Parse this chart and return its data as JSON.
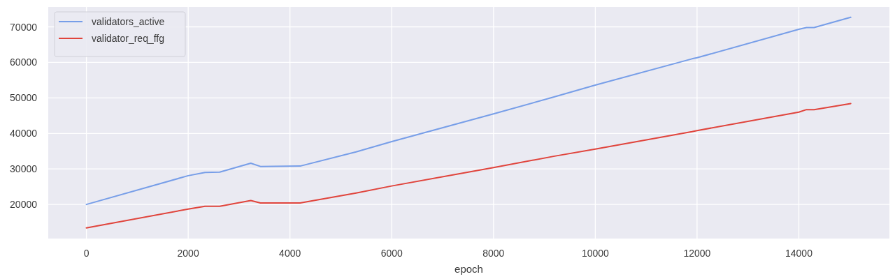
{
  "chart_data": {
    "type": "line",
    "xlabel": "epoch",
    "x": [
      0,
      2000,
      2330,
      2620,
      3230,
      3420,
      4200,
      5300,
      6000,
      8000,
      9200,
      10000,
      11900,
      12000,
      14000,
      14150,
      14300,
      15020
    ],
    "series": [
      {
        "name": "validators_active",
        "color": "#779ee8",
        "values": [
          20000,
          28100,
          29000,
          29100,
          31600,
          30700,
          30800,
          34800,
          37700,
          45500,
          50300,
          53600,
          61000,
          61300,
          69300,
          69800,
          69800,
          72700
        ]
      },
      {
        "name": "validator_req_ffg",
        "color": "#e0443c",
        "values": [
          13400,
          18700,
          19500,
          19500,
          21100,
          20400,
          20400,
          23200,
          25200,
          30400,
          33600,
          35600,
          40500,
          40800,
          46000,
          46700,
          46700,
          48400
        ]
      }
    ],
    "xlim": [
      -750,
      15780
    ],
    "ylim": [
      10400,
      75600
    ],
    "xticks": [
      0,
      2000,
      4000,
      6000,
      8000,
      10000,
      12000,
      14000
    ],
    "yticks": [
      20000,
      30000,
      40000,
      50000,
      60000,
      70000
    ],
    "grid": true,
    "legend": "top left"
  }
}
